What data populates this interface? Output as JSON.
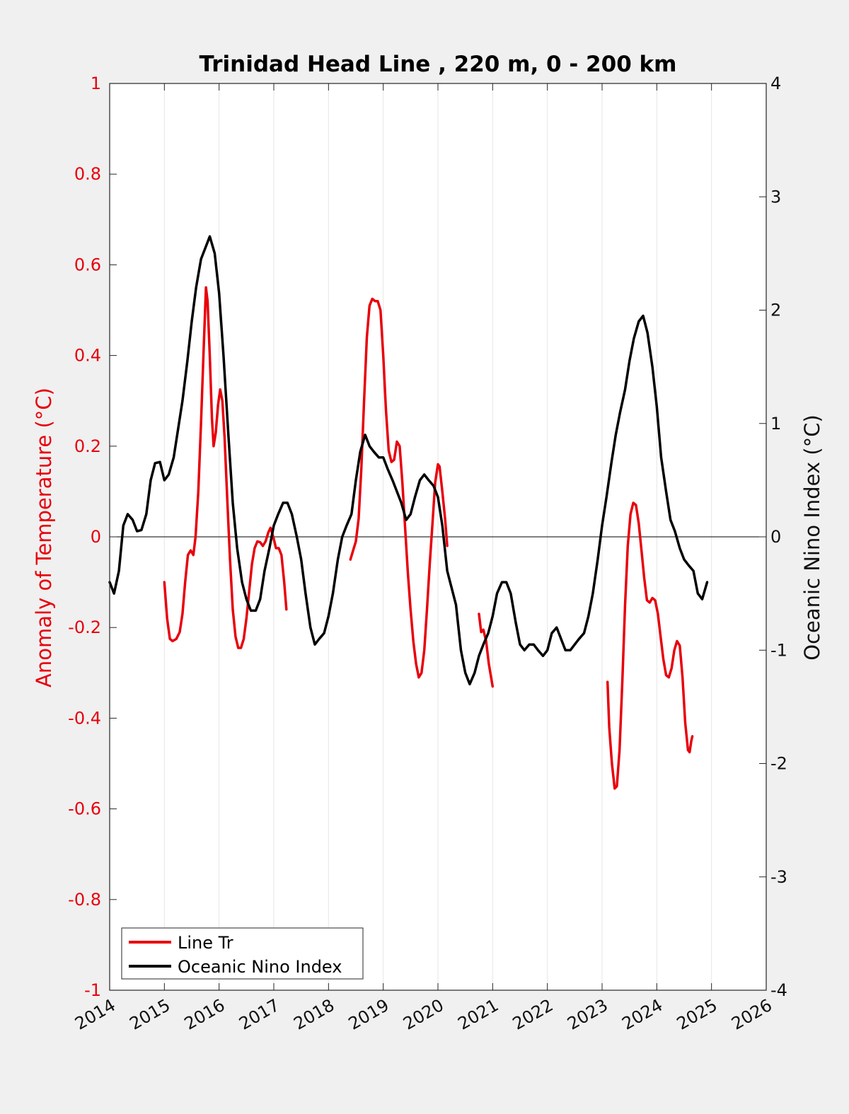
{
  "chart_data": {
    "type": "line",
    "title": "Trinidad Head Line , 220 m, 0 - 200 km",
    "ylabel": "Anomaly of Temperature (°C)",
    "y2label": "Oceanic Nino Index (°C)",
    "xlim": [
      2014,
      2026
    ],
    "ylim": [
      -1,
      1
    ],
    "y2lim": [
      -4,
      4
    ],
    "x_ticks": [
      "2014",
      "2015",
      "2016",
      "2017",
      "2018",
      "2019",
      "2020",
      "2021",
      "2022",
      "2023",
      "2024",
      "2025",
      "2026"
    ],
    "y_ticks": [
      "-1",
      "-0.8",
      "-0.6",
      "-0.4",
      "-0.2",
      "0",
      "0.2",
      "0.4",
      "0.6",
      "0.8",
      "1"
    ],
    "y2_ticks": [
      "-4",
      "-3",
      "-2",
      "-1",
      "0",
      "1",
      "2",
      "3",
      "4"
    ],
    "grid": "vertical",
    "zero_line": true,
    "legend_position": "bottom-left",
    "series": [
      {
        "name": "Line Tr",
        "axis": "left",
        "color": "#e8000b",
        "segments": [
          [
            [
              2015.0,
              -0.1
            ],
            [
              2015.05,
              -0.18
            ],
            [
              2015.1,
              -0.225
            ],
            [
              2015.15,
              -0.23
            ],
            [
              2015.22,
              -0.225
            ],
            [
              2015.28,
              -0.21
            ],
            [
              2015.33,
              -0.17
            ],
            [
              2015.38,
              -0.1
            ],
            [
              2015.43,
              -0.04
            ],
            [
              2015.48,
              -0.03
            ],
            [
              2015.53,
              -0.04
            ],
            [
              2015.57,
              0.0
            ],
            [
              2015.62,
              0.1
            ],
            [
              2015.67,
              0.25
            ],
            [
              2015.72,
              0.42
            ],
            [
              2015.76,
              0.55
            ],
            [
              2015.79,
              0.52
            ],
            [
              2015.83,
              0.4
            ],
            [
              2015.87,
              0.26
            ],
            [
              2015.9,
              0.2
            ],
            [
              2015.94,
              0.23
            ],
            [
              2015.98,
              0.29
            ],
            [
              2016.02,
              0.325
            ],
            [
              2016.06,
              0.3
            ],
            [
              2016.1,
              0.22
            ],
            [
              2016.15,
              0.08
            ],
            [
              2016.2,
              -0.05
            ],
            [
              2016.25,
              -0.16
            ],
            [
              2016.3,
              -0.22
            ],
            [
              2016.35,
              -0.245
            ],
            [
              2016.4,
              -0.245
            ],
            [
              2016.45,
              -0.225
            ],
            [
              2016.5,
              -0.18
            ],
            [
              2016.55,
              -0.12
            ],
            [
              2016.6,
              -0.06
            ],
            [
              2016.65,
              -0.025
            ],
            [
              2016.7,
              -0.01
            ],
            [
              2016.75,
              -0.012
            ],
            [
              2016.8,
              -0.02
            ],
            [
              2016.85,
              -0.01
            ],
            [
              2016.9,
              0.01
            ],
            [
              2016.94,
              0.02
            ],
            [
              2016.99,
              0.0
            ],
            [
              2017.04,
              -0.025
            ],
            [
              2017.09,
              -0.025
            ],
            [
              2017.14,
              -0.04
            ],
            [
              2017.19,
              -0.1
            ],
            [
              2017.23,
              -0.16
            ]
          ],
          [
            [
              2018.4,
              -0.05
            ],
            [
              2018.45,
              -0.03
            ],
            [
              2018.5,
              -0.01
            ],
            [
              2018.55,
              0.04
            ],
            [
              2018.6,
              0.15
            ],
            [
              2018.65,
              0.3
            ],
            [
              2018.7,
              0.44
            ],
            [
              2018.75,
              0.51
            ],
            [
              2018.8,
              0.525
            ],
            [
              2018.85,
              0.52
            ],
            [
              2018.9,
              0.52
            ],
            [
              2018.95,
              0.5
            ],
            [
              2019.0,
              0.4
            ],
            [
              2019.05,
              0.28
            ],
            [
              2019.1,
              0.19
            ],
            [
              2019.15,
              0.165
            ],
            [
              2019.2,
              0.17
            ],
            [
              2019.25,
              0.21
            ],
            [
              2019.3,
              0.2
            ],
            [
              2019.35,
              0.12
            ],
            [
              2019.4,
              0.02
            ],
            [
              2019.45,
              -0.08
            ],
            [
              2019.5,
              -0.16
            ],
            [
              2019.55,
              -0.23
            ],
            [
              2019.6,
              -0.28
            ],
            [
              2019.65,
              -0.31
            ],
            [
              2019.7,
              -0.3
            ],
            [
              2019.75,
              -0.25
            ],
            [
              2019.8,
              -0.16
            ],
            [
              2019.85,
              -0.06
            ],
            [
              2019.9,
              0.03
            ],
            [
              2019.95,
              0.12
            ],
            [
              2020.0,
              0.16
            ],
            [
              2020.03,
              0.155
            ],
            [
              2020.08,
              0.1
            ],
            [
              2020.13,
              0.04
            ],
            [
              2020.17,
              -0.02
            ]
          ],
          [
            [
              2020.75,
              -0.17
            ],
            [
              2020.79,
              -0.21
            ],
            [
              2020.83,
              -0.205
            ],
            [
              2020.88,
              -0.23
            ],
            [
              2020.93,
              -0.28
            ],
            [
              2021.0,
              -0.33
            ]
          ],
          [
            [
              2023.1,
              -0.32
            ],
            [
              2023.13,
              -0.42
            ],
            [
              2023.18,
              -0.5
            ],
            [
              2023.23,
              -0.555
            ],
            [
              2023.27,
              -0.55
            ],
            [
              2023.32,
              -0.47
            ],
            [
              2023.37,
              -0.32
            ],
            [
              2023.42,
              -0.15
            ],
            [
              2023.47,
              -0.02
            ],
            [
              2023.52,
              0.05
            ],
            [
              2023.57,
              0.075
            ],
            [
              2023.62,
              0.07
            ],
            [
              2023.67,
              0.03
            ],
            [
              2023.72,
              -0.03
            ],
            [
              2023.77,
              -0.09
            ],
            [
              2023.82,
              -0.14
            ],
            [
              2023.87,
              -0.145
            ],
            [
              2023.92,
              -0.135
            ],
            [
              2023.97,
              -0.14
            ],
            [
              2024.02,
              -0.17
            ],
            [
              2024.07,
              -0.22
            ],
            [
              2024.12,
              -0.27
            ],
            [
              2024.17,
              -0.305
            ],
            [
              2024.22,
              -0.31
            ],
            [
              2024.27,
              -0.29
            ],
            [
              2024.32,
              -0.25
            ],
            [
              2024.37,
              -0.23
            ],
            [
              2024.42,
              -0.24
            ],
            [
              2024.47,
              -0.31
            ],
            [
              2024.52,
              -0.41
            ],
            [
              2024.57,
              -0.47
            ],
            [
              2024.6,
              -0.475
            ],
            [
              2024.63,
              -0.45
            ],
            [
              2024.65,
              -0.44
            ]
          ]
        ]
      },
      {
        "name": "Oceanic Nino Index",
        "axis": "right",
        "color": "#000000",
        "points": [
          [
            2014.0,
            -0.4
          ],
          [
            2014.08,
            -0.5
          ],
          [
            2014.17,
            -0.3
          ],
          [
            2014.25,
            0.1
          ],
          [
            2014.33,
            0.2
          ],
          [
            2014.42,
            0.15
          ],
          [
            2014.5,
            0.05
          ],
          [
            2014.58,
            0.06
          ],
          [
            2014.67,
            0.2
          ],
          [
            2014.75,
            0.5
          ],
          [
            2014.83,
            0.65
          ],
          [
            2014.92,
            0.66
          ],
          [
            2015.0,
            0.5
          ],
          [
            2015.08,
            0.55
          ],
          [
            2015.17,
            0.7
          ],
          [
            2015.25,
            0.95
          ],
          [
            2015.33,
            1.2
          ],
          [
            2015.42,
            1.55
          ],
          [
            2015.5,
            1.9
          ],
          [
            2015.58,
            2.2
          ],
          [
            2015.67,
            2.45
          ],
          [
            2015.75,
            2.55
          ],
          [
            2015.83,
            2.65
          ],
          [
            2015.92,
            2.5
          ],
          [
            2016.0,
            2.15
          ],
          [
            2016.08,
            1.6
          ],
          [
            2016.17,
            0.9
          ],
          [
            2016.25,
            0.3
          ],
          [
            2016.33,
            -0.1
          ],
          [
            2016.42,
            -0.4
          ],
          [
            2016.5,
            -0.55
          ],
          [
            2016.58,
            -0.65
          ],
          [
            2016.67,
            -0.65
          ],
          [
            2016.75,
            -0.55
          ],
          [
            2016.83,
            -0.3
          ],
          [
            2016.92,
            -0.1
          ],
          [
            2017.0,
            0.1
          ],
          [
            2017.08,
            0.2
          ],
          [
            2017.17,
            0.3
          ],
          [
            2017.25,
            0.3
          ],
          [
            2017.33,
            0.2
          ],
          [
            2017.42,
            0.0
          ],
          [
            2017.5,
            -0.2
          ],
          [
            2017.58,
            -0.5
          ],
          [
            2017.67,
            -0.8
          ],
          [
            2017.75,
            -0.95
          ],
          [
            2017.83,
            -0.9
          ],
          [
            2017.92,
            -0.85
          ],
          [
            2018.0,
            -0.7
          ],
          [
            2018.08,
            -0.5
          ],
          [
            2018.17,
            -0.2
          ],
          [
            2018.25,
            0.0
          ],
          [
            2018.33,
            0.1
          ],
          [
            2018.42,
            0.2
          ],
          [
            2018.5,
            0.5
          ],
          [
            2018.58,
            0.75
          ],
          [
            2018.67,
            0.9
          ],
          [
            2018.75,
            0.8
          ],
          [
            2018.83,
            0.75
          ],
          [
            2018.92,
            0.7
          ],
          [
            2019.0,
            0.7
          ],
          [
            2019.08,
            0.6
          ],
          [
            2019.17,
            0.5
          ],
          [
            2019.25,
            0.4
          ],
          [
            2019.33,
            0.3
          ],
          [
            2019.42,
            0.15
          ],
          [
            2019.5,
            0.2
          ],
          [
            2019.58,
            0.35
          ],
          [
            2019.67,
            0.5
          ],
          [
            2019.75,
            0.55
          ],
          [
            2019.83,
            0.5
          ],
          [
            2019.92,
            0.45
          ],
          [
            2020.0,
            0.35
          ],
          [
            2020.08,
            0.1
          ],
          [
            2020.17,
            -0.3
          ],
          [
            2020.25,
            -0.45
          ],
          [
            2020.33,
            -0.6
          ],
          [
            2020.42,
            -1.0
          ],
          [
            2020.5,
            -1.2
          ],
          [
            2020.58,
            -1.3
          ],
          [
            2020.67,
            -1.2
          ],
          [
            2020.75,
            -1.05
          ],
          [
            2020.83,
            -0.95
          ],
          [
            2020.92,
            -0.85
          ],
          [
            2021.0,
            -0.7
          ],
          [
            2021.08,
            -0.5
          ],
          [
            2021.17,
            -0.4
          ],
          [
            2021.25,
            -0.4
          ],
          [
            2021.33,
            -0.5
          ],
          [
            2021.42,
            -0.75
          ],
          [
            2021.5,
            -0.95
          ],
          [
            2021.58,
            -1.0
          ],
          [
            2021.67,
            -0.95
          ],
          [
            2021.75,
            -0.95
          ],
          [
            2021.83,
            -1.0
          ],
          [
            2021.92,
            -1.05
          ],
          [
            2022.0,
            -1.0
          ],
          [
            2022.08,
            -0.85
          ],
          [
            2022.17,
            -0.8
          ],
          [
            2022.25,
            -0.9
          ],
          [
            2022.33,
            -1.0
          ],
          [
            2022.42,
            -1.0
          ],
          [
            2022.5,
            -0.95
          ],
          [
            2022.58,
            -0.9
          ],
          [
            2022.67,
            -0.85
          ],
          [
            2022.75,
            -0.7
          ],
          [
            2022.83,
            -0.5
          ],
          [
            2022.92,
            -0.2
          ],
          [
            2023.0,
            0.1
          ],
          [
            2023.08,
            0.35
          ],
          [
            2023.17,
            0.65
          ],
          [
            2023.25,
            0.9
          ],
          [
            2023.33,
            1.1
          ],
          [
            2023.42,
            1.3
          ],
          [
            2023.5,
            1.55
          ],
          [
            2023.58,
            1.75
          ],
          [
            2023.67,
            1.9
          ],
          [
            2023.75,
            1.95
          ],
          [
            2023.83,
            1.8
          ],
          [
            2023.92,
            1.5
          ],
          [
            2024.0,
            1.15
          ],
          [
            2024.08,
            0.7
          ],
          [
            2024.17,
            0.4
          ],
          [
            2024.25,
            0.15
          ],
          [
            2024.33,
            0.05
          ],
          [
            2024.42,
            -0.1
          ],
          [
            2024.5,
            -0.2
          ],
          [
            2024.58,
            -0.25
          ],
          [
            2024.67,
            -0.3
          ],
          [
            2024.75,
            -0.5
          ],
          [
            2024.83,
            -0.55
          ],
          [
            2024.92,
            -0.4
          ]
        ]
      }
    ]
  }
}
